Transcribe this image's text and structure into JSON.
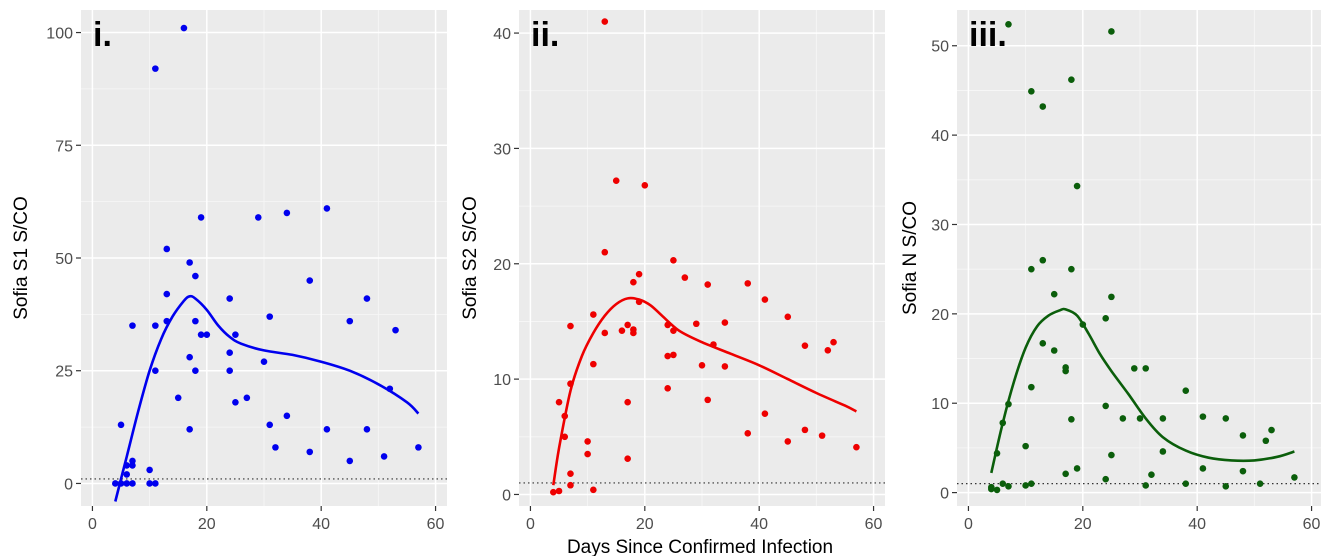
{
  "figure": {
    "xlabel": "Days Since Confirmed Infection"
  },
  "chart_data": [
    {
      "type": "scatter",
      "panel_label": "i.",
      "ylabel": "Sofia S1 S/CO",
      "xlim": [
        -2,
        62
      ],
      "ylim": [
        -5,
        105
      ],
      "x_ticks": [
        0,
        20,
        40,
        60
      ],
      "y_ticks": [
        0,
        25,
        50,
        75,
        100
      ],
      "y_tick_labels": [
        "0",
        "25",
        "50",
        "75",
        "100"
      ],
      "cutoff": 1,
      "grid": true,
      "color": "#0000ee",
      "points": [
        [
          4,
          0
        ],
        [
          5,
          0
        ],
        [
          5,
          13
        ],
        [
          6,
          0
        ],
        [
          6,
          2
        ],
        [
          6,
          4
        ],
        [
          7,
          0
        ],
        [
          7,
          4
        ],
        [
          7,
          5
        ],
        [
          7,
          35
        ],
        [
          10,
          0
        ],
        [
          10,
          3
        ],
        [
          11,
          0
        ],
        [
          11,
          25
        ],
        [
          11,
          35
        ],
        [
          11,
          92
        ],
        [
          13,
          36
        ],
        [
          13,
          42
        ],
        [
          13,
          52
        ],
        [
          15,
          19
        ],
        [
          16,
          101
        ],
        [
          17,
          12
        ],
        [
          17,
          28
        ],
        [
          17,
          49
        ],
        [
          18,
          25
        ],
        [
          18,
          36
        ],
        [
          18,
          46
        ],
        [
          19,
          33
        ],
        [
          19,
          59
        ],
        [
          20,
          33
        ],
        [
          24,
          25
        ],
        [
          24,
          29
        ],
        [
          24,
          41
        ],
        [
          25,
          18
        ],
        [
          25,
          33
        ],
        [
          27,
          19
        ],
        [
          29,
          59
        ],
        [
          30,
          27
        ],
        [
          31,
          13
        ],
        [
          31,
          37
        ],
        [
          32,
          8
        ],
        [
          34,
          15
        ],
        [
          34,
          60
        ],
        [
          38,
          7
        ],
        [
          38,
          45
        ],
        [
          41,
          12
        ],
        [
          41,
          61
        ],
        [
          45,
          5
        ],
        [
          45,
          36
        ],
        [
          48,
          12
        ],
        [
          48,
          41
        ],
        [
          51,
          6
        ],
        [
          52,
          21
        ],
        [
          53,
          34
        ],
        [
          57,
          8
        ]
      ],
      "trend": [
        [
          4,
          -4
        ],
        [
          6,
          6
        ],
        [
          8,
          16
        ],
        [
          10,
          25
        ],
        [
          12,
          32
        ],
        [
          14,
          37
        ],
        [
          16,
          40.5
        ],
        [
          17,
          41.5
        ],
        [
          18,
          41
        ],
        [
          20,
          38.5
        ],
        [
          22,
          35
        ],
        [
          24,
          32.5
        ],
        [
          26,
          31
        ],
        [
          30,
          29.5
        ],
        [
          35,
          28.5
        ],
        [
          40,
          27
        ],
        [
          45,
          25
        ],
        [
          50,
          22
        ],
        [
          55,
          18
        ],
        [
          57,
          15.5
        ]
      ]
    },
    {
      "type": "scatter",
      "panel_label": "ii.",
      "ylabel": "Sofia S2 S/CO",
      "xlim": [
        -2,
        62
      ],
      "ylim": [
        -1,
        42
      ],
      "x_ticks": [
        0,
        20,
        40,
        60
      ],
      "y_ticks": [
        0,
        10,
        20,
        30,
        40
      ],
      "y_tick_labels": [
        "0",
        "10",
        "20",
        "30",
        "40"
      ],
      "cutoff": 1,
      "grid": true,
      "color": "#ee0000",
      "points": [
        [
          4,
          0.2
        ],
        [
          5,
          0.3
        ],
        [
          5,
          8
        ],
        [
          6,
          5
        ],
        [
          6,
          6.8
        ],
        [
          7,
          0.8
        ],
        [
          7,
          1.8
        ],
        [
          7,
          9.6
        ],
        [
          7,
          14.6
        ],
        [
          10,
          3.5
        ],
        [
          10,
          4.6
        ],
        [
          11,
          0.4
        ],
        [
          11,
          11.3
        ],
        [
          11,
          15.6
        ],
        [
          13,
          14
        ],
        [
          13,
          21
        ],
        [
          13,
          41
        ],
        [
          15,
          27.2
        ],
        [
          16,
          14.2
        ],
        [
          17,
          3.1
        ],
        [
          17,
          8
        ],
        [
          17,
          14.7
        ],
        [
          18,
          14
        ],
        [
          18,
          14.3
        ],
        [
          18,
          18.4
        ],
        [
          19,
          16.7
        ],
        [
          19,
          19.1
        ],
        [
          20,
          26.8
        ],
        [
          24,
          9.2
        ],
        [
          24,
          12
        ],
        [
          24,
          14.7
        ],
        [
          25,
          12.1
        ],
        [
          25,
          14.2
        ],
        [
          25,
          20.3
        ],
        [
          27,
          18.8
        ],
        [
          29,
          14.8
        ],
        [
          30,
          11.2
        ],
        [
          31,
          8.2
        ],
        [
          31,
          18.2
        ],
        [
          32,
          13
        ],
        [
          34,
          11.1
        ],
        [
          34,
          14.9
        ],
        [
          38,
          5.3
        ],
        [
          38,
          18.3
        ],
        [
          41,
          7
        ],
        [
          41,
          16.9
        ],
        [
          45,
          4.6
        ],
        [
          45,
          15.4
        ],
        [
          48,
          5.6
        ],
        [
          48,
          12.9
        ],
        [
          51,
          5.1
        ],
        [
          52,
          12.5
        ],
        [
          53,
          13.2
        ],
        [
          57,
          4.1
        ]
      ],
      "trend": [
        [
          4,
          0.8
        ],
        [
          5,
          4
        ],
        [
          7,
          9
        ],
        [
          9,
          12
        ],
        [
          11,
          14
        ],
        [
          13,
          15.5
        ],
        [
          15,
          16.5
        ],
        [
          17,
          17
        ],
        [
          19,
          16.9
        ],
        [
          21,
          16.4
        ],
        [
          23,
          15.5
        ],
        [
          26,
          14.2
        ],
        [
          30,
          13.2
        ],
        [
          35,
          12.2
        ],
        [
          40,
          11.2
        ],
        [
          45,
          10
        ],
        [
          50,
          8.8
        ],
        [
          55,
          7.7
        ],
        [
          57,
          7.2
        ]
      ]
    },
    {
      "type": "scatter",
      "panel_label": "iii.",
      "ylabel": "Sofia N S/CO",
      "xlim": [
        -2,
        62
      ],
      "ylim": [
        -1.5,
        54
      ],
      "x_ticks": [
        0,
        20,
        40,
        60
      ],
      "y_ticks": [
        0,
        10,
        20,
        30,
        40,
        50
      ],
      "y_tick_labels": [
        "0",
        "10",
        "20",
        "30",
        "40",
        "50"
      ],
      "cutoff": 1,
      "grid": true,
      "color": "#0b5e0b",
      "points": [
        [
          4,
          0.6
        ],
        [
          4,
          0.4
        ],
        [
          5,
          0.3
        ],
        [
          5,
          4.4
        ],
        [
          6,
          1
        ],
        [
          6,
          7.8
        ],
        [
          7,
          0.7
        ],
        [
          7,
          9.9
        ],
        [
          7,
          52.4
        ],
        [
          10,
          0.8
        ],
        [
          10,
          5.2
        ],
        [
          11,
          1
        ],
        [
          11,
          11.8
        ],
        [
          11,
          25
        ],
        [
          11,
          44.9
        ],
        [
          13,
          16.7
        ],
        [
          13,
          26
        ],
        [
          13,
          43.2
        ],
        [
          15,
          15.9
        ],
        [
          15,
          22.2
        ],
        [
          17,
          2.1
        ],
        [
          17,
          13.6
        ],
        [
          17,
          14
        ],
        [
          18,
          8.2
        ],
        [
          18,
          25
        ],
        [
          18,
          46.2
        ],
        [
          19,
          2.7
        ],
        [
          19,
          34.3
        ],
        [
          20,
          18.8
        ],
        [
          24,
          1.5
        ],
        [
          24,
          9.7
        ],
        [
          24,
          19.5
        ],
        [
          25,
          4.2
        ],
        [
          25,
          21.9
        ],
        [
          25,
          51.6
        ],
        [
          27,
          8.3
        ],
        [
          29,
          13.9
        ],
        [
          30,
          8.3
        ],
        [
          31,
          0.8
        ],
        [
          31,
          13.9
        ],
        [
          32,
          2
        ],
        [
          34,
          4.6
        ],
        [
          34,
          8.3
        ],
        [
          38,
          1
        ],
        [
          38,
          11.4
        ],
        [
          41,
          2.7
        ],
        [
          41,
          8.5
        ],
        [
          45,
          0.7
        ],
        [
          45,
          8.3
        ],
        [
          48,
          2.4
        ],
        [
          48,
          6.4
        ],
        [
          51,
          1
        ],
        [
          52,
          5.8
        ],
        [
          53,
          7
        ],
        [
          57,
          1.7
        ]
      ],
      "trend": [
        [
          4,
          2.2
        ],
        [
          6,
          7.8
        ],
        [
          8,
          12.5
        ],
        [
          10,
          16.2
        ],
        [
          12,
          18.6
        ],
        [
          14,
          19.8
        ],
        [
          16,
          20.4
        ],
        [
          17,
          20.5
        ],
        [
          19,
          19.8
        ],
        [
          21,
          17.8
        ],
        [
          23,
          15.5
        ],
        [
          25,
          13.6
        ],
        [
          28,
          11
        ],
        [
          31,
          8.3
        ],
        [
          34,
          6.2
        ],
        [
          38,
          4.7
        ],
        [
          42,
          3.9
        ],
        [
          46,
          3.6
        ],
        [
          50,
          3.6
        ],
        [
          54,
          4
        ],
        [
          57,
          4.6
        ]
      ]
    }
  ]
}
